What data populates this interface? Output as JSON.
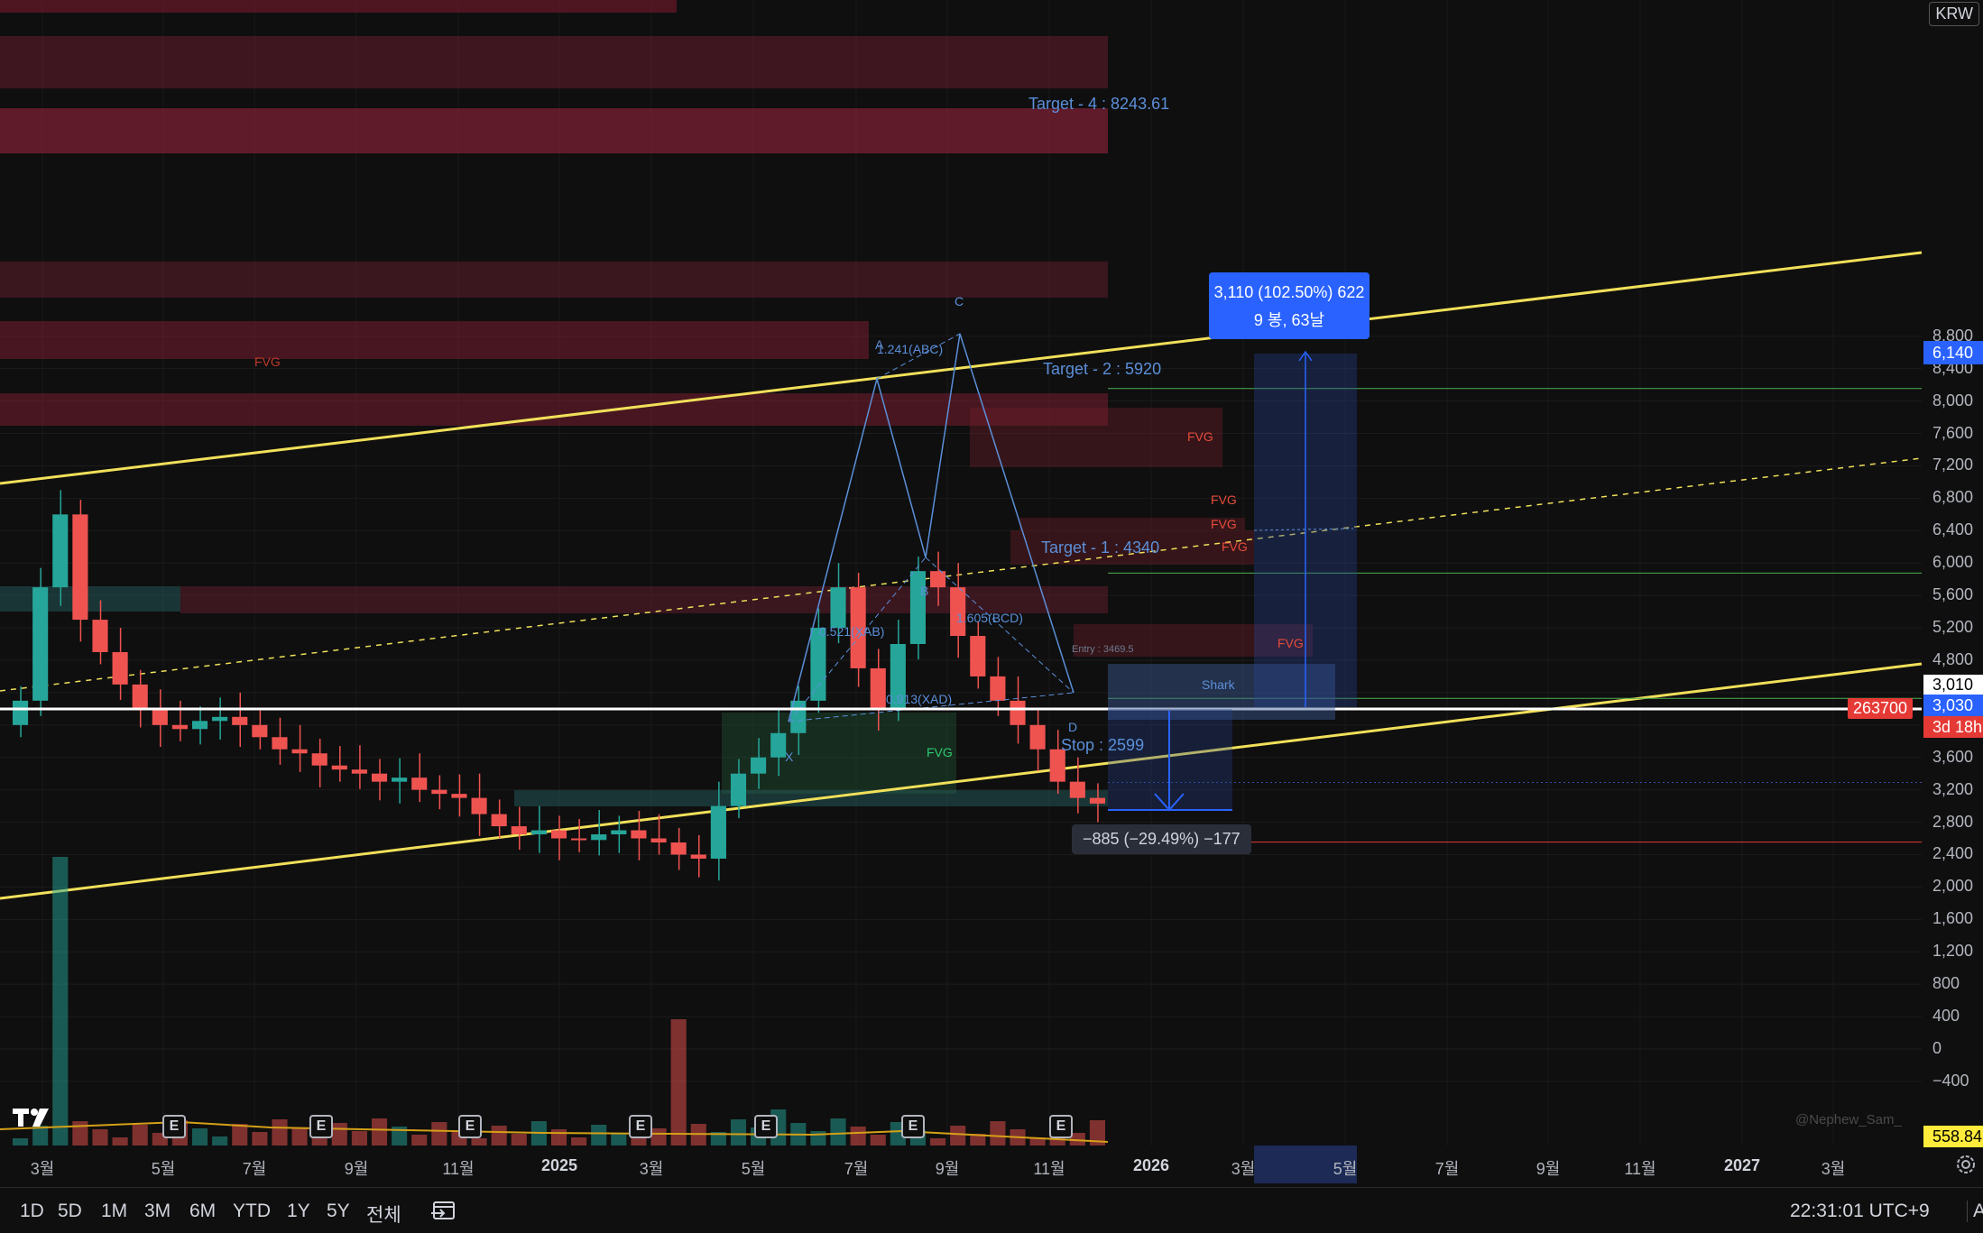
{
  "currency": "KRW",
  "price_axis": {
    "ticks": [
      "8,800",
      "8,400",
      "8,000",
      "7,600",
      "7,200",
      "6,800",
      "6,400",
      "6,000",
      "5,600",
      "5,200",
      "4,800",
      "4,400",
      "4,000",
      "3,600",
      "3,200",
      "2,800",
      "2,400",
      "2,000",
      "1,600",
      "1,200",
      "800",
      "400",
      "0",
      "−400"
    ],
    "tags": {
      "target_price": "6,140",
      "entry_price": "3,010",
      "current_price": "3,030",
      "countdown": "3d 18h",
      "volume": "558.84"
    }
  },
  "time_axis": [
    {
      "label": "3월",
      "bold": false
    },
    {
      "label": "5월",
      "bold": false
    },
    {
      "label": "7월",
      "bold": false
    },
    {
      "label": "9월",
      "bold": false
    },
    {
      "label": "11월",
      "bold": false
    },
    {
      "label": "2025",
      "bold": true
    },
    {
      "label": "3월",
      "bold": false
    },
    {
      "label": "5월",
      "bold": false
    },
    {
      "label": "7월",
      "bold": false
    },
    {
      "label": "9월",
      "bold": false
    },
    {
      "label": "11월",
      "bold": false
    },
    {
      "label": "2026",
      "bold": true
    },
    {
      "label": "3월",
      "bold": false
    },
    {
      "label": "5월",
      "bold": false
    },
    {
      "label": "7월",
      "bold": false
    },
    {
      "label": "9월",
      "bold": false
    },
    {
      "label": "11월",
      "bold": false
    },
    {
      "label": "2027",
      "bold": true
    },
    {
      "label": "3월",
      "bold": false
    }
  ],
  "annotations": {
    "target4": "Target - 4 : 8243.61",
    "target2": "Target - 2 : 5920",
    "target1": "Target - 1 : 4340",
    "stop": "Stop : 2599",
    "entry": "Entry : 3469.5",
    "fvg": "FVG",
    "shark": "Shark",
    "abc": "1.241(ABC)",
    "bcd": "1.605(BCD)",
    "xab": "0.521(XAB)",
    "xad": "0.913(XAD)",
    "point_x": "X",
    "point_a": "A",
    "point_b": "B",
    "point_c": "C",
    "point_d": "D",
    "volume_marker": "263700",
    "gain_line1": "3,110 (102.50%) 622",
    "gain_line2": "9 봉, 63날",
    "loss": "−885 (−29.49%) −177",
    "watermark": "@Nephew_Sam_",
    "earnings": "E"
  },
  "toolbar": {
    "timeframes": [
      "1D",
      "5D",
      "1M",
      "3M",
      "6M",
      "YTD",
      "1Y",
      "5Y",
      "전체"
    ],
    "clock": "22:31:01 UTC+9",
    "right_cut": "AD"
  },
  "chart_data": {
    "type": "candlestick",
    "title": "",
    "ylim": [
      -400,
      9000
    ],
    "y_unit": "KRW",
    "levels": {
      "target4": 8243.61,
      "target2": 5920,
      "target1": 4340,
      "entry": 3469.5,
      "stop": 2599,
      "last": 3030
    },
    "harmonic_pattern": {
      "name": "Shark",
      "X": 2700,
      "A": 5900,
      "B": 4350,
      "C": 6300,
      "D": 3100
    },
    "closes": [
      4300,
      5700,
      6600,
      5300,
      4900,
      4500,
      4200,
      4000,
      3950,
      4050,
      4100,
      4000,
      3850,
      3700,
      3650,
      3500,
      3450,
      3400,
      3300,
      3350,
      3200,
      3150,
      3100,
      2900,
      2750,
      2650,
      2700,
      2600,
      2580,
      2650,
      2700,
      2600,
      2550,
      2400,
      2350,
      3000,
      3400,
      3600,
      3900,
      4300,
      5200,
      5700,
      4700,
      4200,
      5000,
      5900,
      5700,
      5100,
      4600,
      4300,
      4000,
      3700,
      3300,
      3100,
      3030
    ],
    "volume_note": "volume histogram shown at bottom with MA"
  }
}
